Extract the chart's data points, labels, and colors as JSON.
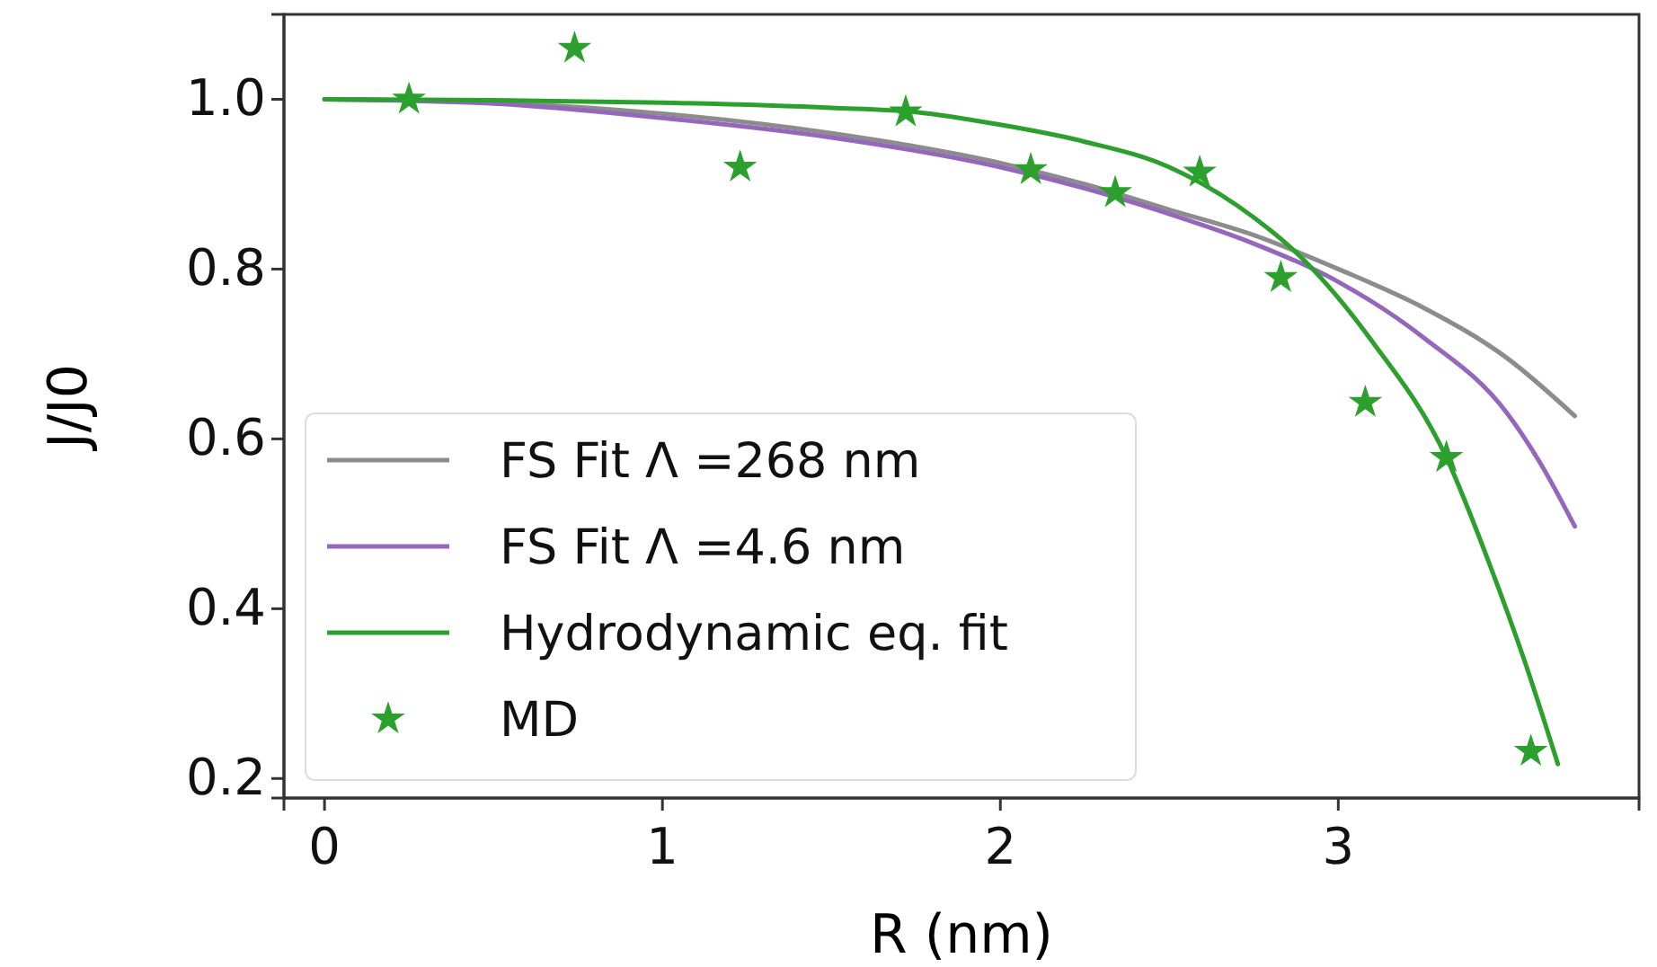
{
  "chart_data": {
    "type": "line",
    "xlabel": "R (nm)",
    "ylabel": "J/J0",
    "xlim": [
      -0.12,
      3.89
    ],
    "ylim": [
      0.177,
      1.1
    ],
    "xticks": [
      0,
      1,
      2,
      3
    ],
    "yticks": [
      {
        "value": 0.2,
        "label": "0.2"
      },
      {
        "value": 0.4,
        "label": "0.4"
      },
      {
        "value": 0.6,
        "label": "0.6"
      },
      {
        "value": 0.8,
        "label": "0.8"
      },
      {
        "value": 1.0,
        "label": "1.0"
      }
    ],
    "grid": false,
    "legend": "bottom left",
    "series": [
      {
        "name": "FS Fit Λ =268 nm",
        "color": "#8c8c8c",
        "x": [
          0,
          0.5,
          1,
          1.5,
          2,
          2.25,
          2.5,
          2.75,
          3,
          3.25,
          3.5,
          3.7
        ],
        "values": [
          1.0,
          0.996,
          0.983,
          0.96,
          0.925,
          0.9,
          0.87,
          0.84,
          0.8,
          0.755,
          0.695,
          0.627
        ]
      },
      {
        "name": "FS Fit Λ =4.6 nm",
        "color": "#9467bd",
        "x": [
          0,
          0.5,
          1,
          1.5,
          2,
          2.25,
          2.5,
          2.75,
          3,
          3.25,
          3.5,
          3.6,
          3.7
        ],
        "values": [
          1.0,
          0.995,
          0.978,
          0.955,
          0.92,
          0.895,
          0.865,
          0.83,
          0.785,
          0.72,
          0.63,
          0.57,
          0.497
        ]
      },
      {
        "name": "Hydrodynamic eq. fit",
        "color": "#2ca02c",
        "x": [
          0,
          0.5,
          1,
          1.5,
          1.75,
          2,
          2.25,
          2.5,
          2.7,
          2.9,
          3.1,
          3.32,
          3.45,
          3.55,
          3.65
        ],
        "values": [
          1.0,
          0.999,
          0.996,
          0.99,
          0.985,
          0.97,
          0.95,
          0.92,
          0.875,
          0.81,
          0.715,
          0.578,
          0.45,
          0.34,
          0.217
        ]
      },
      {
        "name": "MD",
        "type": "scatter",
        "marker": "star",
        "color": "#2ca02c",
        "x": [
          0.25,
          0.74,
          1.23,
          1.72,
          2.09,
          2.34,
          2.59,
          2.83,
          3.08,
          3.32,
          3.57
        ],
        "values": [
          1.0,
          1.06,
          0.92,
          0.985,
          0.917,
          0.89,
          0.914,
          0.79,
          0.643,
          0.578,
          0.232
        ]
      }
    ]
  }
}
